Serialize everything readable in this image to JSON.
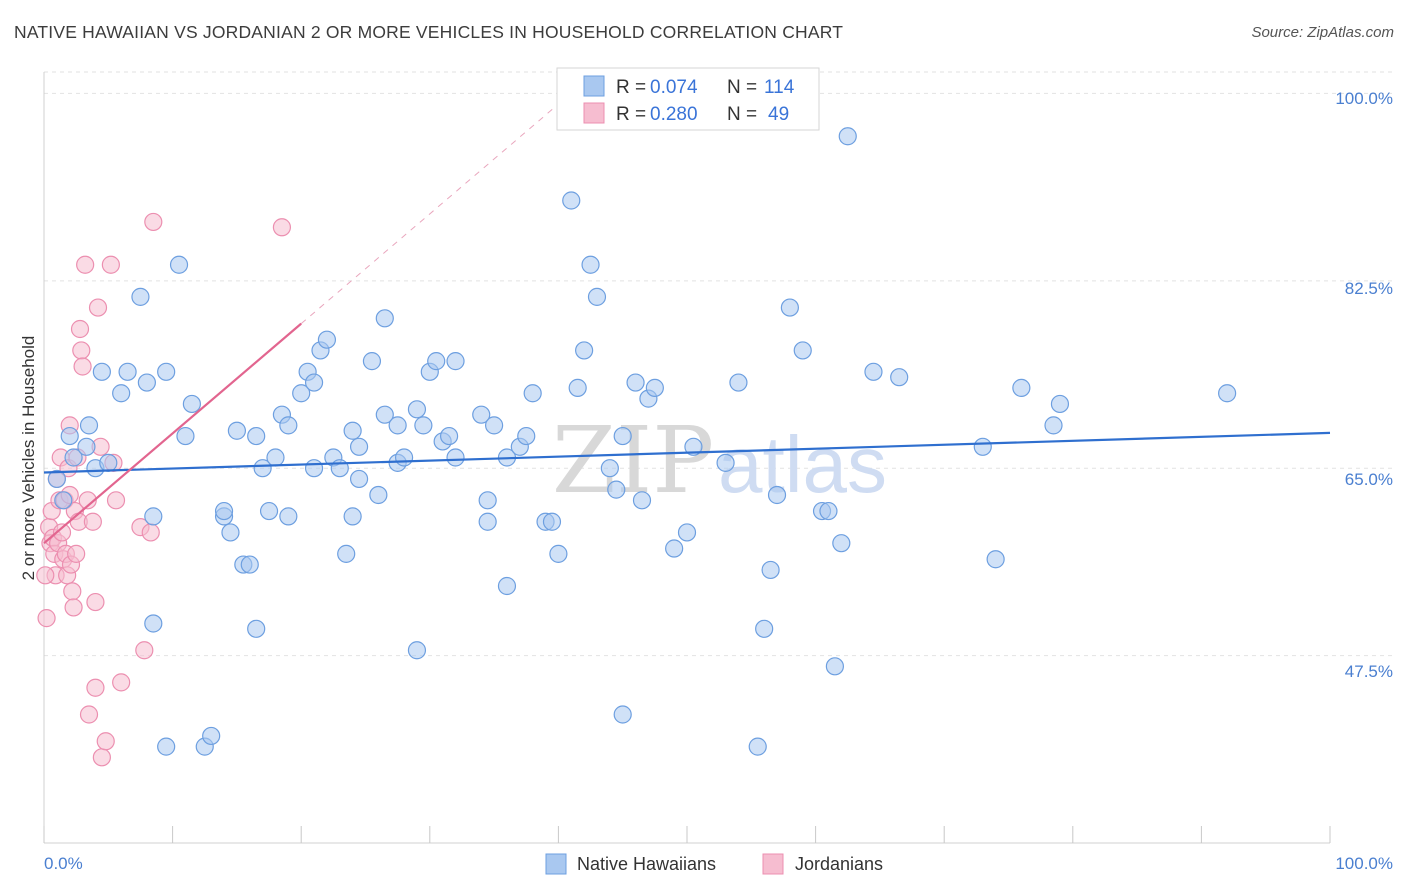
{
  "header": {
    "title": "NATIVE HAWAIIAN VS JORDANIAN 2 OR MORE VEHICLES IN HOUSEHOLD CORRELATION CHART",
    "source": "Source: ZipAtlas.com"
  },
  "watermark": {
    "zip": "ZIP",
    "atlas": "atlas"
  },
  "legend": {
    "rows": [
      {
        "r_label": "R = ",
        "r_value": "0.074",
        "n_label": "N = ",
        "n_value": "114"
      },
      {
        "r_label": "R = ",
        "r_value": "0.280",
        "n_label": "N = ",
        "n_value": "49"
      }
    ]
  },
  "bottom_legend": {
    "items": [
      "Native Hawaiians",
      "Jordanians"
    ]
  },
  "colors": {
    "blue_fill": "#a9c8f0",
    "blue_stroke": "#6d9fe0",
    "blue_line": "#2f6fcf",
    "pink_fill": "#f6bdd0",
    "pink_stroke": "#ec8fb0",
    "pink_line": "#e2658f",
    "tick_text": "#4a7fd0",
    "grid": "#e2e2e2"
  },
  "chart_data": {
    "type": "scatter",
    "title": "NATIVE HAWAIIAN VS JORDANIAN 2 OR MORE VEHICLES IN HOUSEHOLD CORRELATION CHART",
    "xlabel": "",
    "ylabel": "2 or more Vehicles in Household",
    "xlim": [
      0,
      100
    ],
    "ylim": [
      30,
      102
    ],
    "x_tick_labels": [
      "0.0%",
      "100.0%"
    ],
    "y_ticks": [
      47.5,
      65.0,
      82.5,
      100.0
    ],
    "y_tick_labels": [
      "47.5%",
      "65.0%",
      "82.5%",
      "100.0%"
    ],
    "grid": true,
    "legend_position": "top-center",
    "series": [
      {
        "name": "Native Hawaiians",
        "R": 0.074,
        "N": 114,
        "trend": {
          "x": [
            0,
            100
          ],
          "y": [
            64.6,
            68.3
          ]
        },
        "points": [
          [
            1,
            64
          ],
          [
            1.5,
            62
          ],
          [
            2,
            68
          ],
          [
            2.3,
            66
          ],
          [
            3.5,
            69
          ],
          [
            3.3,
            67
          ],
          [
            4.5,
            74
          ],
          [
            4,
            65
          ],
          [
            5,
            65.5
          ],
          [
            6,
            72
          ],
          [
            6.5,
            74
          ],
          [
            7.5,
            81
          ],
          [
            8,
            73
          ],
          [
            8.5,
            60.5
          ],
          [
            9.5,
            74
          ],
          [
            10.5,
            84
          ],
          [
            11,
            68
          ],
          [
            11.5,
            71
          ],
          [
            8.5,
            50.5
          ],
          [
            9.5,
            39
          ],
          [
            12.5,
            39
          ],
          [
            13,
            40
          ],
          [
            14,
            60.5
          ],
          [
            14.5,
            59
          ],
          [
            14,
            61
          ],
          [
            15,
            68.5
          ],
          [
            15.5,
            56
          ],
          [
            16,
            56
          ],
          [
            16.5,
            50
          ],
          [
            16.5,
            68
          ],
          [
            17,
            65
          ],
          [
            17.5,
            61
          ],
          [
            18,
            66
          ],
          [
            18.5,
            70
          ],
          [
            19,
            69
          ],
          [
            19,
            60.5
          ],
          [
            20,
            72
          ],
          [
            20.5,
            74
          ],
          [
            21,
            73
          ],
          [
            21.5,
            76
          ],
          [
            21,
            65
          ],
          [
            22,
            77
          ],
          [
            22.5,
            66
          ],
          [
            23,
            65
          ],
          [
            23.5,
            57
          ],
          [
            24,
            68.5
          ],
          [
            24.5,
            67
          ],
          [
            24,
            60.5
          ],
          [
            24.5,
            64
          ],
          [
            25.5,
            75
          ],
          [
            26,
            62.5
          ],
          [
            26.5,
            79
          ],
          [
            26.5,
            70
          ],
          [
            27.5,
            65.5
          ],
          [
            27.5,
            69
          ],
          [
            28,
            66
          ],
          [
            29,
            70.5
          ],
          [
            29.5,
            69
          ],
          [
            29,
            48
          ],
          [
            30,
            74
          ],
          [
            30.5,
            75
          ],
          [
            31,
            67.5
          ],
          [
            31.5,
            68
          ],
          [
            32,
            75
          ],
          [
            32,
            66
          ],
          [
            34,
            70
          ],
          [
            34.5,
            62
          ],
          [
            34.5,
            60
          ],
          [
            35,
            69
          ],
          [
            36,
            66
          ],
          [
            37,
            67
          ],
          [
            37.5,
            68
          ],
          [
            36,
            54
          ],
          [
            38,
            72
          ],
          [
            39,
            60
          ],
          [
            39.5,
            60
          ],
          [
            40,
            57
          ],
          [
            41,
            90
          ],
          [
            41.5,
            72.5
          ],
          [
            42,
            76
          ],
          [
            42.5,
            84
          ],
          [
            43,
            81
          ],
          [
            44,
            65
          ],
          [
            44.5,
            63
          ],
          [
            45,
            68
          ],
          [
            46,
            73
          ],
          [
            46.5,
            62
          ],
          [
            47,
            71.5
          ],
          [
            47.5,
            72.5
          ],
          [
            49,
            57.5
          ],
          [
            50,
            59
          ],
          [
            50.5,
            67
          ],
          [
            45,
            42
          ],
          [
            53,
            65.5
          ],
          [
            54,
            73
          ],
          [
            55.5,
            39
          ],
          [
            56,
            50
          ],
          [
            56.5,
            55.5
          ],
          [
            57,
            62.5
          ],
          [
            58,
            80
          ],
          [
            59,
            76
          ],
          [
            60.5,
            61
          ],
          [
            61,
            61
          ],
          [
            61.5,
            46.5
          ],
          [
            62,
            58
          ],
          [
            62.5,
            96
          ],
          [
            64.5,
            74
          ],
          [
            66.5,
            73.5
          ],
          [
            73,
            67
          ],
          [
            74,
            56.5
          ],
          [
            76,
            72.5
          ],
          [
            78.5,
            69
          ],
          [
            79,
            71
          ],
          [
            92,
            72
          ]
        ]
      },
      {
        "name": "Jordanians",
        "R": 0.28,
        "N": 49,
        "trend": {
          "x": [
            0,
            20
          ],
          "y": [
            58,
            78.5
          ]
        },
        "points": [
          [
            0.2,
            51
          ],
          [
            0.4,
            59.5
          ],
          [
            0.5,
            58
          ],
          [
            0.6,
            61
          ],
          [
            0.7,
            58.5
          ],
          [
            0.8,
            57
          ],
          [
            0.9,
            55
          ],
          [
            1,
            64
          ],
          [
            1.1,
            58
          ],
          [
            1.2,
            62
          ],
          [
            1.3,
            66
          ],
          [
            1.4,
            59
          ],
          [
            1.5,
            56.5
          ],
          [
            1.6,
            62
          ],
          [
            1.7,
            57
          ],
          [
            1.8,
            55
          ],
          [
            1.9,
            65
          ],
          [
            2,
            69
          ],
          [
            2,
            62.5
          ],
          [
            2.1,
            56
          ],
          [
            2.2,
            53.5
          ],
          [
            2.3,
            52
          ],
          [
            2.4,
            61
          ],
          [
            2.5,
            57
          ],
          [
            2.6,
            66
          ],
          [
            2.7,
            60
          ],
          [
            2.8,
            78
          ],
          [
            2.9,
            76
          ],
          [
            3,
            74.5
          ],
          [
            3.2,
            84
          ],
          [
            3.4,
            62
          ],
          [
            3.5,
            42
          ],
          [
            3.8,
            60
          ],
          [
            4,
            52.5
          ],
          [
            4,
            44.5
          ],
          [
            4.2,
            80
          ],
          [
            4.4,
            67
          ],
          [
            4.5,
            38
          ],
          [
            4.8,
            39.5
          ],
          [
            5.2,
            84
          ],
          [
            5.4,
            65.5
          ],
          [
            5.6,
            62
          ],
          [
            6,
            45
          ],
          [
            7.5,
            59.5
          ],
          [
            7.8,
            48
          ],
          [
            8.3,
            59
          ],
          [
            8.5,
            88
          ],
          [
            18.5,
            87.5
          ],
          [
            0.1,
            55
          ]
        ]
      }
    ]
  }
}
